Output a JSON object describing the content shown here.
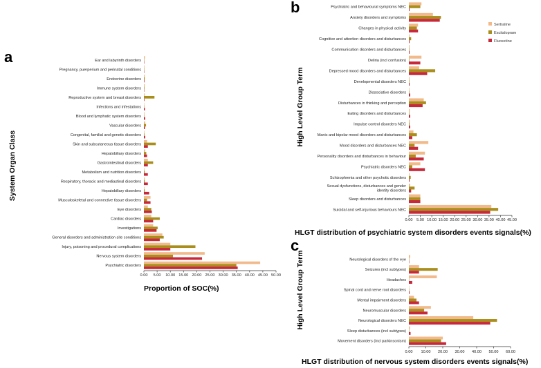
{
  "colors": {
    "sertraline": "#f2b98a",
    "escitalopram": "#a98e1c",
    "fluoxetine": "#c9283b"
  },
  "chart_data": [
    {
      "type": "bar",
      "panel": "a",
      "orientation": "horizontal",
      "xlabel": "Proportion of SOC(%)",
      "ylabel": "System Organ Class",
      "xlim": [
        0,
        50
      ],
      "xticks": [
        "0.00",
        "5.00",
        "10.00",
        "15.00",
        "20.00",
        "25.00",
        "30.00",
        "35.00",
        "40.00",
        "45.00",
        "50.00"
      ],
      "categories": [
        "Ear and labyrinth disorders",
        "Pregnancy, puerperium and perinatal conditions",
        "Endocrine disorders",
        "Immune system disorders",
        "Reproductive system and breast disorders",
        "Infections and infestations",
        "Blood and lymphatic system disorders",
        "Vascular disorders",
        "Congenital, familial and genetic disorders",
        "Skin and subcutaneous tissue disorders",
        "Hepatobiliary disorders",
        "Gastrointestinal disorders",
        "Metabolism and nutrition disorders",
        "Respiratory, thoracic and mediastinal disorders",
        "Hepatobiliary disorders",
        "Musculoskeletal and connective tissue disorders",
        "Eye disorders",
        "Cardiac disorders",
        "Investigations",
        "General disorders and administration site conditions",
        "Injury, poisoning and procedural complications",
        "Nervous system disorders",
        "Psychiatric disorders"
      ],
      "series": [
        {
          "name": "Sertraline",
          "values": [
            0.4,
            0.2,
            0.3,
            0.3,
            0.3,
            0.1,
            0.2,
            0.5,
            0.2,
            1.2,
            0.5,
            1.5,
            0.2,
            0.3,
            0.2,
            2.5,
            1.5,
            2.8,
            3.5,
            7.0,
            10.0,
            23.0,
            44.0
          ]
        },
        {
          "name": "Escitalopram",
          "values": [
            0.1,
            0.1,
            0.3,
            0.2,
            4.0,
            0.1,
            0.1,
            0.8,
            0.2,
            4.5,
            0.9,
            3.5,
            0.3,
            0.3,
            0.3,
            1.2,
            2.8,
            6.0,
            5.2,
            7.5,
            19.5,
            11.0,
            35.0
          ]
        },
        {
          "name": "Fluoxetine",
          "values": [
            0.1,
            0.1,
            0.2,
            0.1,
            0.2,
            0.4,
            0.5,
            0.4,
            0.5,
            1.5,
            1.2,
            1.5,
            1.5,
            1.5,
            2.0,
            2.5,
            3.0,
            3.5,
            4.8,
            6.0,
            10.0,
            22.0,
            35.5
          ]
        }
      ]
    },
    {
      "type": "bar",
      "panel": "b",
      "orientation": "horizontal",
      "xlabel": "HLGT distribution of psychiatric system disorders events signals(%)",
      "ylabel": "High Level Group Term",
      "xlim": [
        0,
        45
      ],
      "xticks": [
        "0.00",
        "5.00",
        "10.00",
        "15.00",
        "20.00",
        "25.00",
        "30.00",
        "35.00",
        "40.00",
        "45.00"
      ],
      "legend": [
        "Sertraline",
        "Escitalopram",
        "Fluoxetine"
      ],
      "categories": [
        "Psychiatric and behavioural symptoms NEC",
        "Anxiety disorders and symptoms",
        "Changes in physical activity",
        "Cognitive and attention disorders and disturbances",
        "Communication disorders and disturbances",
        "Deliria (incl confusion)",
        "Depressed mood disorders and disturbances",
        "Developmental disorders NEC",
        "Dissociative disorders",
        "Disturbances in thinking and perception",
        "Eating disorders and disturbances",
        "Impulse control disorders NEC",
        "Manic and bipolar mood disorders and disturbances",
        "Mood disorders and disturbances NEC",
        "Personality disorders and disturbances in behaviour",
        "Psychiatric disorders NEC",
        "Schizophrenia and other psychotic disorders",
        "Sexual dysfunctions, disturbances and gender identity disorders",
        "Sleep disorders and disturbances",
        "Suicidal and self-injurious behaviours NEC"
      ],
      "series": [
        {
          "name": "Sertraline",
          "values": [
            5.5,
            10.5,
            4.0,
            0.3,
            0.3,
            5.5,
            4.5,
            0.3,
            0.2,
            6.5,
            0.4,
            0.4,
            2.0,
            8.5,
            7.0,
            5.0,
            0.3,
            0.6,
            5.0,
            36.0
          ]
        },
        {
          "name": "Escitalopram",
          "values": [
            5.0,
            14.0,
            3.5,
            1.0,
            0.2,
            0.2,
            11.5,
            0.2,
            0.2,
            7.5,
            0.2,
            0.3,
            3.5,
            2.5,
            3.0,
            1.5,
            0.8,
            2.5,
            5.0,
            39.0
          ]
        },
        {
          "name": "Fluoxetine",
          "values": [
            0.3,
            13.5,
            4.0,
            0.3,
            0.3,
            5.0,
            8.0,
            0.3,
            0.6,
            6.0,
            0.6,
            0.6,
            1.5,
            4.0,
            6.5,
            7.0,
            0.3,
            1.0,
            5.0,
            35.5
          ]
        }
      ]
    },
    {
      "type": "bar",
      "panel": "c",
      "orientation": "horizontal",
      "xlabel": "HLGT distribution of nervous system disorders events signals(%)",
      "ylabel": "High Level Group Term",
      "xlim": [
        0,
        60
      ],
      "xticks": [
        "0.00",
        "10.00",
        "20.00",
        "30.00",
        "40.00",
        "50.00",
        "60.00"
      ],
      "categories": [
        "Neurological disorders of the eye",
        "Seizures (incl subtypes)",
        "Headaches",
        "Spinal cord and nerve root disorders",
        "Mental impairment disorders",
        "Neuromuscular disorders",
        "Neurological disorders NEC",
        "Sleep disturbances (incl subtypes)",
        "Movement disorders (incl parkinsonism)"
      ],
      "series": [
        {
          "name": "Sertraline",
          "values": [
            0.8,
            6.0,
            16.5,
            0.2,
            3.0,
            13.0,
            38.0,
            0.7,
            20.0
          ]
        },
        {
          "name": "Escitalopram",
          "values": [
            0.2,
            17.0,
            0.2,
            0.2,
            4.5,
            9.0,
            52.0,
            0.2,
            19.0
          ]
        },
        {
          "name": "Fluoxetine",
          "values": [
            0.2,
            6.0,
            2.0,
            0.4,
            6.0,
            11.0,
            48.0,
            1.0,
            22.0
          ]
        }
      ]
    }
  ]
}
